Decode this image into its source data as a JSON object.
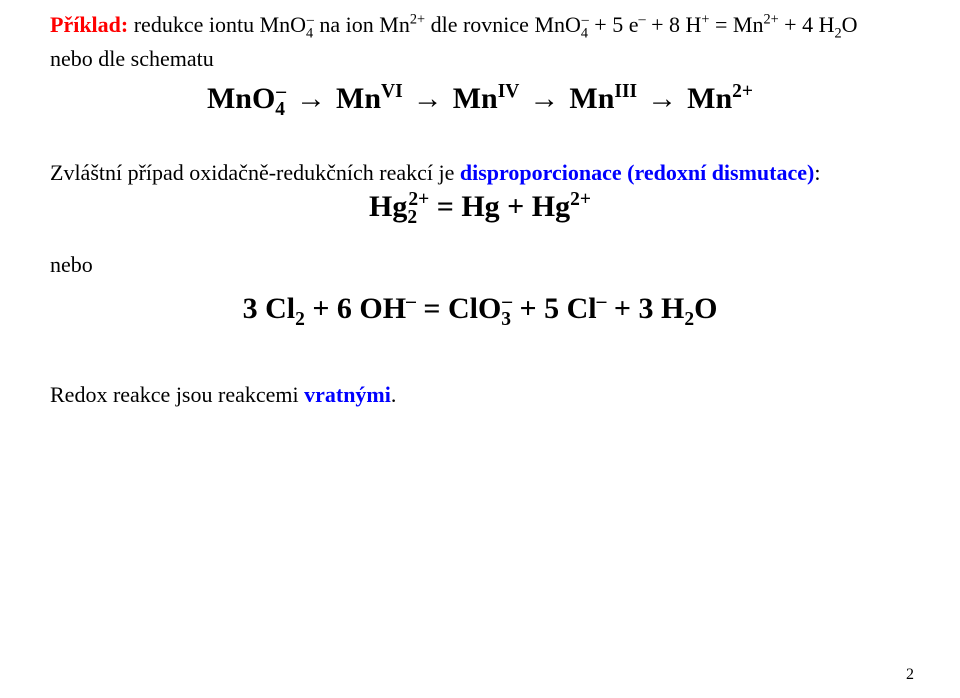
{
  "line1": {
    "priklad_label": "Příklad:",
    "t1": " redukce iontu MnO",
    "t2": " na ion Mn",
    "t3": " dle rovnice MnO",
    "t4": " + 5 e",
    "t5": " + 8 H",
    "t6": " = Mn",
    "t7": " + 4 H",
    "t8": "O",
    "sub4": "4",
    "minus": "–",
    "plus2": "2+",
    "plus": "+",
    "sub2": "2"
  },
  "line2": "nebo dle schematu",
  "chain": {
    "n1": "MnO",
    "n1_sub": "4",
    "n1_sup": "–",
    "n2": "Mn",
    "n2_sup": "VI",
    "n3": "Mn",
    "n3_sup": "IV",
    "n4": "Mn",
    "n4_sup": "III",
    "n5": "Mn",
    "n5_sup": "2+",
    "arrow": "→"
  },
  "para2": {
    "t1": "Zvláštní případ oxidačně-redukčních reakcí je ",
    "blue": "disproporcionace (redoxní dismutace)",
    "colon": ":"
  },
  "hg": {
    "lhs": "Hg",
    "sub2": "2",
    "sup2p": "2+",
    "eq": " = Hg + Hg"
  },
  "nebo": "nebo",
  "cl": {
    "a": "3 Cl",
    "sub2": "2",
    "b": " + 6 OH",
    "minus": "–",
    "c": " = ClO",
    "sub3": "3",
    "d": " + 5 Cl",
    "e": " + 3 H",
    "f": "O"
  },
  "footer": {
    "t1": "Redox reakce jsou reakcemi ",
    "blue": "vratnými",
    "dot": "."
  },
  "page_number": "2"
}
